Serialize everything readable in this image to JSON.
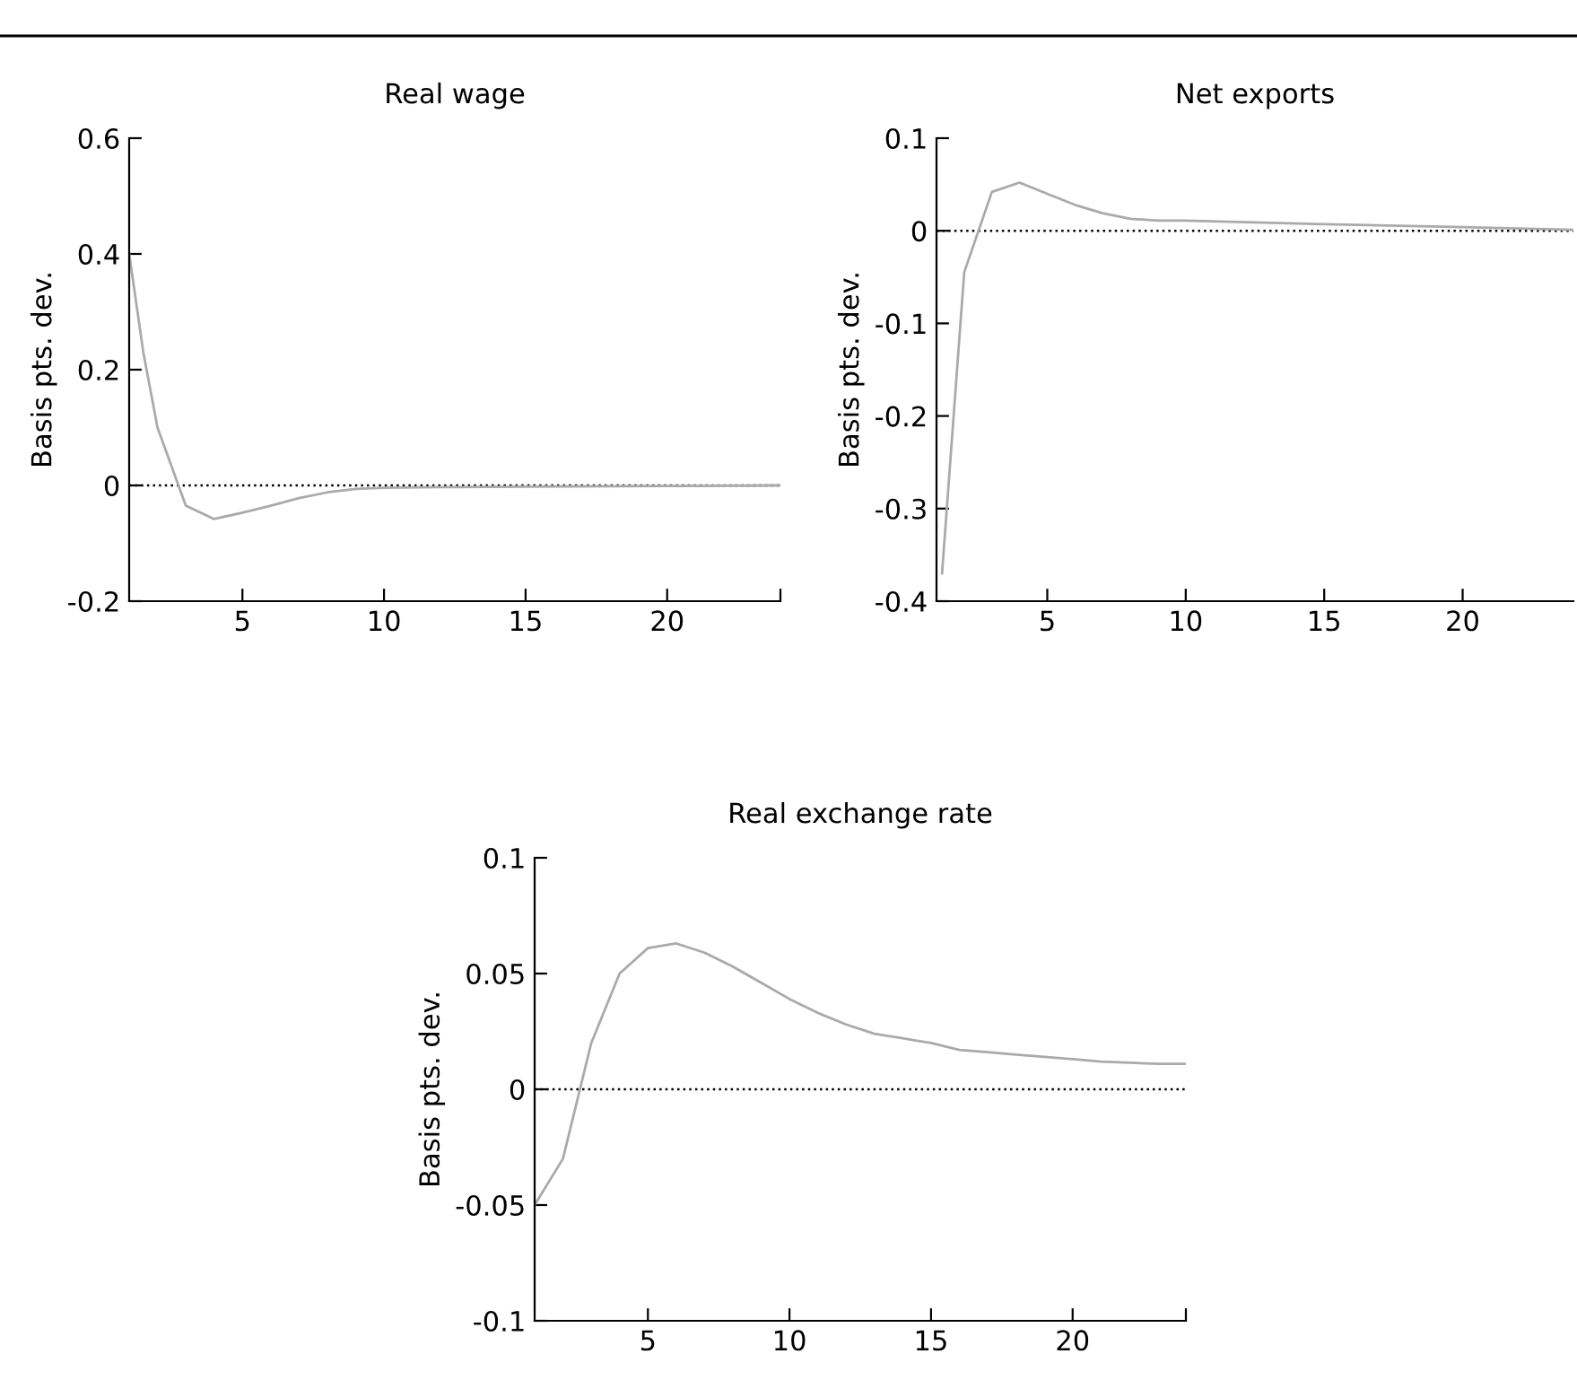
{
  "chart_data": [
    {
      "type": "line",
      "title": "Real wage",
      "ylabel": "Basis pts. dev.",
      "xlim": [
        1,
        24
      ],
      "xticks": [
        5,
        10,
        15,
        20,
        {
          "value": 24,
          "label": null
        }
      ],
      "ylim": [
        -0.2,
        0.6
      ],
      "yticks": [
        -0.2,
        0,
        0.2,
        0.4,
        0.6
      ],
      "grid": false,
      "legend": false,
      "ref_lines": [
        {
          "axis": "y",
          "value": 0,
          "color": "#000000",
          "line_style": "dotted"
        }
      ],
      "series": [
        {
          "color": "#aaaaaa",
          "x": [
            1,
            1.5,
            2,
            3,
            4,
            5,
            6,
            7,
            8,
            9,
            10,
            12,
            15,
            20,
            24
          ],
          "values": [
            0.4,
            0.23,
            0.1,
            -0.035,
            -0.058,
            -0.047,
            -0.035,
            -0.022,
            -0.012,
            -0.006,
            -0.004,
            -0.003,
            -0.002,
            -0.001,
            0
          ]
        }
      ]
    },
    {
      "type": "line",
      "title": "Net exports",
      "ylabel": "Basis pts. dev.",
      "xlim": [
        1,
        24
      ],
      "xticks": [
        5,
        10,
        15,
        20
      ],
      "ylim": [
        -0.4,
        0.1
      ],
      "yticks": [
        -0.4,
        -0.3,
        -0.2,
        -0.1,
        0,
        0.1
      ],
      "grid": false,
      "legend": false,
      "ref_lines": [
        {
          "axis": "y",
          "value": 0,
          "color": "#000000",
          "line_style": "dotted"
        }
      ],
      "series": [
        {
          "color": "#aaaaaa",
          "x": [
            1.2,
            2,
            3,
            4,
            5,
            6,
            7,
            8,
            9,
            10,
            15,
            20,
            24
          ],
          "values": [
            -0.37,
            -0.045,
            0.042,
            0.052,
            0.04,
            0.028,
            0.019,
            0.013,
            0.011,
            0.011,
            0.007,
            0.004,
            0.001
          ]
        }
      ]
    },
    {
      "type": "line",
      "title": "Real exchange rate",
      "ylabel": "Basis pts. dev.",
      "xlim": [
        1,
        24
      ],
      "xticks": [
        5,
        10,
        15,
        20,
        {
          "value": 24,
          "label": null
        }
      ],
      "ylim": [
        -0.1,
        0.1
      ],
      "yticks": [
        -0.1,
        -0.05,
        0,
        0.05,
        0.1
      ],
      "grid": false,
      "legend": false,
      "ref_lines": [
        {
          "axis": "y",
          "value": 0,
          "color": "#000000",
          "line_style": "dotted"
        }
      ],
      "series": [
        {
          "color": "#aaaaaa",
          "x": [
            1,
            2,
            3,
            4,
            5,
            6,
            7,
            8,
            9,
            10,
            11,
            12,
            13,
            14,
            15,
            16,
            17,
            18,
            19,
            20,
            21,
            22,
            23,
            24
          ],
          "values": [
            -0.05,
            -0.03,
            0.02,
            0.05,
            0.061,
            0.063,
            0.059,
            0.053,
            0.046,
            0.039,
            0.033,
            0.028,
            0.024,
            0.022,
            0.02,
            0.017,
            0.016,
            0.015,
            0.014,
            0.013,
            0.012,
            0.0115,
            0.011,
            0.011
          ]
        }
      ]
    }
  ]
}
